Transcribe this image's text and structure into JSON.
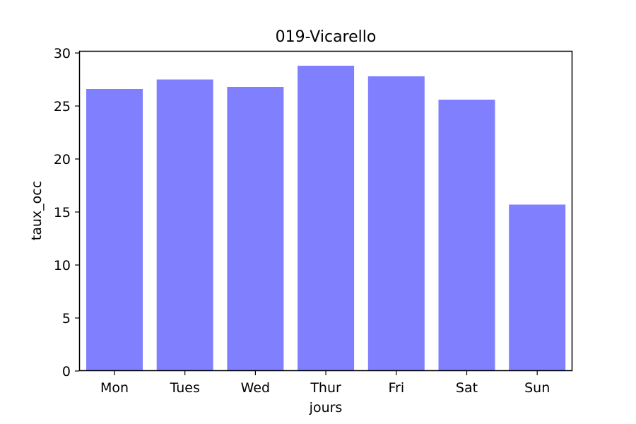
{
  "chart_data": {
    "type": "bar",
    "title": "019-Vicarello",
    "xlabel": "jours",
    "ylabel": "taux_occ",
    "categories": [
      "Mon",
      "Tues",
      "Wed",
      "Thur",
      "Fri",
      "Sat",
      "Sun"
    ],
    "values": [
      26.6,
      27.5,
      26.8,
      28.8,
      27.8,
      25.6,
      15.7
    ],
    "ylim": [
      0,
      30
    ],
    "yticks": [
      0,
      5,
      10,
      15,
      20,
      25,
      30
    ],
    "grid": false,
    "legend": "none",
    "bar_color": "#8080ff"
  }
}
